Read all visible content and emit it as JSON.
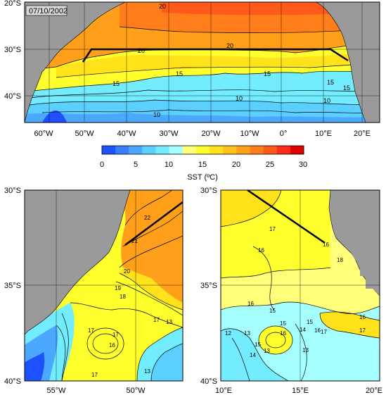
{
  "date_label": "07/10/2002",
  "colorbar": {
    "title": "SST (ºC)",
    "ticks": [
      "0",
      "5",
      "10",
      "15",
      "20",
      "25",
      "30"
    ],
    "colors": [
      "#1e50ff",
      "#3b7dff",
      "#4ca8ff",
      "#5bd0ff",
      "#73ecff",
      "#a6ffff",
      "#ffff7a",
      "#ffff2e",
      "#ffe21a",
      "#ffc21a",
      "#ff9f1a",
      "#ff7d1a",
      "#ff5a1a",
      "#ff2a1a",
      "#e00000"
    ]
  },
  "top_map": {
    "lat_ticks": [
      "20°S",
      "30°S",
      "40°S"
    ],
    "lon_ticks": [
      "60°W",
      "50°W",
      "40°W",
      "30°W",
      "20°W",
      "10°W",
      "0°",
      "10°E",
      "20°E"
    ],
    "contour_labels": [
      "20",
      "20",
      "20",
      "15",
      "15",
      "15",
      "15",
      "15",
      "10",
      "10",
      "10"
    ]
  },
  "left_map": {
    "lat_ticks": [
      "30°S",
      "35°S",
      "40°S"
    ],
    "lon_ticks": [
      "55°W",
      "50°W"
    ],
    "contour_labels": [
      "22",
      "21",
      "20",
      "19",
      "18",
      "17",
      "17",
      "17",
      "16",
      "13",
      "17",
      "13"
    ]
  },
  "right_map": {
    "lat_ticks": [
      "30°S",
      "35°S",
      "40°S"
    ],
    "lon_ticks": [
      "10°E",
      "15°E",
      "20°E"
    ],
    "contour_labels": [
      "17",
      "16",
      "16",
      "18",
      "16",
      "15",
      "15",
      "16",
      "15",
      "14",
      "16",
      "17",
      "16",
      "13",
      "13",
      "12",
      "15",
      "14",
      "13",
      "17"
    ]
  },
  "colors": {
    "land": "#9a9a9a",
    "warm": "#ff9f1a",
    "hot": "#ff7d1a",
    "mid": "#ffff2e",
    "cool": "#5bd0ff",
    "cold": "#1e50ff"
  }
}
